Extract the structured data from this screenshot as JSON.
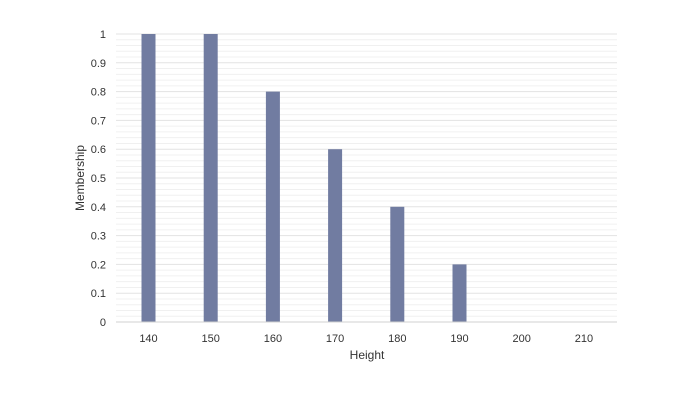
{
  "chart_data": {
    "type": "bar",
    "title": "",
    "xlabel": "Height",
    "ylabel": "Membership",
    "categories": [
      "140",
      "150",
      "160",
      "170",
      "180",
      "190",
      "200",
      "210"
    ],
    "values": [
      1,
      1,
      0.8,
      0.6,
      0.4,
      0.2,
      0,
      0
    ],
    "ylim": [
      0,
      1
    ],
    "y_ticks": [
      "0",
      "0.1",
      "0.2",
      "0.3",
      "0.4",
      "0.5",
      "0.6",
      "0.7",
      "0.8",
      "0.9",
      "1"
    ],
    "y_tick_values": [
      0,
      0.1,
      0.2,
      0.3,
      0.4,
      0.5,
      0.6,
      0.7,
      0.8,
      0.9,
      1
    ],
    "grid": true,
    "legend": "none",
    "bar_color": "#717ca1",
    "grid_color": "#e3e3e3",
    "axis_color": "#d0d0d0"
  }
}
